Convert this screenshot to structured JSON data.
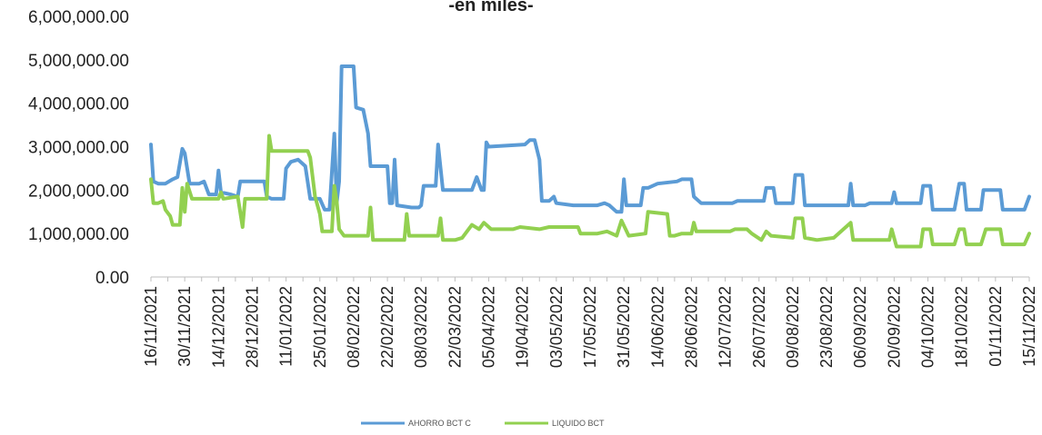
{
  "chart_data": {
    "type": "line",
    "title": "-en miles-",
    "xlabel": "",
    "ylabel": "",
    "ylim": [
      0,
      6000000
    ],
    "yticks": [
      "0.00",
      "1,000,000.00",
      "2,000,000.00",
      "3,000,000.00",
      "4,000,000.00",
      "5,000,000.00",
      "6,000,000.00"
    ],
    "ytick_values": [
      0,
      1000000,
      2000000,
      3000000,
      4000000,
      5000000,
      6000000
    ],
    "x_range": [
      "2021-11-16",
      "2022-11-15"
    ],
    "x_ticks": [
      "16/11/2021",
      "30/11/2021",
      "14/12/2021",
      "28/12/2021",
      "11/01/2022",
      "25/01/2022",
      "08/02/2022",
      "22/02/2022",
      "08/03/2022",
      "22/03/2022",
      "05/04/2022",
      "19/04/2022",
      "03/05/2022",
      "17/05/2022",
      "31/05/2022",
      "14/06/2022",
      "28/06/2022",
      "12/07/2022",
      "26/07/2022",
      "09/08/2022",
      "23/08/2022",
      "06/09/2022",
      "20/09/2022",
      "04/10/2022",
      "18/10/2022",
      "01/11/2022",
      "15/11/2022"
    ],
    "grid": false,
    "legend_position": "bottom",
    "series": [
      {
        "name": "AHORRO BCT C",
        "color": "#5b9bd5",
        "points": [
          [
            "2021-11-16",
            3050000
          ],
          [
            "2021-11-17",
            2200000
          ],
          [
            "2021-11-19",
            2150000
          ],
          [
            "2021-11-22",
            2150000
          ],
          [
            "2021-11-25",
            2250000
          ],
          [
            "2021-11-27",
            2300000
          ],
          [
            "2021-11-29",
            2950000
          ],
          [
            "2021-11-30",
            2850000
          ],
          [
            "2021-12-02",
            2150000
          ],
          [
            "2021-12-06",
            2150000
          ],
          [
            "2021-12-08",
            2200000
          ],
          [
            "2021-12-10",
            1900000
          ],
          [
            "2021-12-13",
            1900000
          ],
          [
            "2021-12-14",
            2450000
          ],
          [
            "2021-12-15",
            1950000
          ],
          [
            "2021-12-19",
            1900000
          ],
          [
            "2021-12-22",
            1850000
          ],
          [
            "2021-12-23",
            2200000
          ],
          [
            "2021-12-26",
            2200000
          ],
          [
            "2021-12-31",
            2200000
          ],
          [
            "2022-01-02",
            2200000
          ],
          [
            "2022-01-03",
            1850000
          ],
          [
            "2022-01-05",
            1800000
          ],
          [
            "2022-01-08",
            1800000
          ],
          [
            "2022-01-10",
            1800000
          ],
          [
            "2022-01-11",
            2500000
          ],
          [
            "2022-01-13",
            2650000
          ],
          [
            "2022-01-16",
            2700000
          ],
          [
            "2022-01-19",
            2550000
          ],
          [
            "2022-01-21",
            1800000
          ],
          [
            "2022-01-25",
            1800000
          ],
          [
            "2022-01-27",
            1550000
          ],
          [
            "2022-01-29",
            1550000
          ],
          [
            "2022-01-31",
            3300000
          ],
          [
            "2022-02-01",
            1700000
          ],
          [
            "2022-02-02",
            2200000
          ],
          [
            "2022-02-03",
            4850000
          ],
          [
            "2022-02-08",
            4850000
          ],
          [
            "2022-02-09",
            3900000
          ],
          [
            "2022-02-12",
            3850000
          ],
          [
            "2022-02-14",
            3300000
          ],
          [
            "2022-02-15",
            2550000
          ],
          [
            "2022-02-20",
            2550000
          ],
          [
            "2022-02-22",
            2550000
          ],
          [
            "2022-02-23",
            1700000
          ],
          [
            "2022-02-24",
            1700000
          ],
          [
            "2022-02-25",
            2700000
          ],
          [
            "2022-02-26",
            1650000
          ],
          [
            "2022-03-04",
            1600000
          ],
          [
            "2022-03-07",
            1600000
          ],
          [
            "2022-03-08",
            1650000
          ],
          [
            "2022-03-09",
            2100000
          ],
          [
            "2022-03-14",
            2100000
          ],
          [
            "2022-03-15",
            3050000
          ],
          [
            "2022-03-17",
            2000000
          ],
          [
            "2022-03-22",
            2000000
          ],
          [
            "2022-03-29",
            2000000
          ],
          [
            "2022-03-31",
            2300000
          ],
          [
            "2022-04-02",
            2000000
          ],
          [
            "2022-04-03",
            2000000
          ],
          [
            "2022-04-04",
            3100000
          ],
          [
            "2022-04-05",
            3000000
          ],
          [
            "2022-04-20",
            3050000
          ],
          [
            "2022-04-22",
            3150000
          ],
          [
            "2022-04-24",
            3150000
          ],
          [
            "2022-04-26",
            2700000
          ],
          [
            "2022-04-27",
            1750000
          ],
          [
            "2022-04-30",
            1750000
          ],
          [
            "2022-05-02",
            1850000
          ],
          [
            "2022-05-03",
            1700000
          ],
          [
            "2022-05-10",
            1650000
          ],
          [
            "2022-05-20",
            1650000
          ],
          [
            "2022-05-23",
            1700000
          ],
          [
            "2022-05-25",
            1650000
          ],
          [
            "2022-05-28",
            1500000
          ],
          [
            "2022-05-30",
            1500000
          ],
          [
            "2022-05-31",
            2250000
          ],
          [
            "2022-06-01",
            1650000
          ],
          [
            "2022-06-07",
            1650000
          ],
          [
            "2022-06-08",
            2050000
          ],
          [
            "2022-06-10",
            2050000
          ],
          [
            "2022-06-14",
            2150000
          ],
          [
            "2022-06-22",
            2200000
          ],
          [
            "2022-06-24",
            2250000
          ],
          [
            "2022-06-28",
            2250000
          ],
          [
            "2022-06-29",
            1850000
          ],
          [
            "2022-07-02",
            1700000
          ],
          [
            "2022-07-15",
            1700000
          ],
          [
            "2022-07-17",
            1750000
          ],
          [
            "2022-07-26",
            1750000
          ],
          [
            "2022-07-28",
            1750000
          ],
          [
            "2022-07-29",
            2050000
          ],
          [
            "2022-08-01",
            2050000
          ],
          [
            "2022-08-02",
            1700000
          ],
          [
            "2022-08-09",
            1700000
          ],
          [
            "2022-08-10",
            2350000
          ],
          [
            "2022-08-13",
            2350000
          ],
          [
            "2022-08-14",
            1650000
          ],
          [
            "2022-09-01",
            1650000
          ],
          [
            "2022-09-02",
            2150000
          ],
          [
            "2022-09-03",
            1650000
          ],
          [
            "2022-09-08",
            1650000
          ],
          [
            "2022-09-10",
            1700000
          ],
          [
            "2022-09-19",
            1700000
          ],
          [
            "2022-09-20",
            1950000
          ],
          [
            "2022-09-21",
            1700000
          ],
          [
            "2022-10-01",
            1700000
          ],
          [
            "2022-10-02",
            2100000
          ],
          [
            "2022-10-05",
            2100000
          ],
          [
            "2022-10-06",
            1550000
          ],
          [
            "2022-10-15",
            1550000
          ],
          [
            "2022-10-17",
            2150000
          ],
          [
            "2022-10-19",
            2150000
          ],
          [
            "2022-10-20",
            1550000
          ],
          [
            "2022-10-26",
            1550000
          ],
          [
            "2022-10-27",
            2000000
          ],
          [
            "2022-11-03",
            2000000
          ],
          [
            "2022-11-04",
            1550000
          ],
          [
            "2022-11-13",
            1550000
          ],
          [
            "2022-11-15",
            1850000
          ]
        ]
      },
      {
        "name": "LIQUIDO BCT",
        "color": "#92d050",
        "points": [
          [
            "2021-11-16",
            2250000
          ],
          [
            "2021-11-17",
            1700000
          ],
          [
            "2021-11-19",
            1700000
          ],
          [
            "2021-11-21",
            1750000
          ],
          [
            "2021-11-22",
            1550000
          ],
          [
            "2021-11-24",
            1400000
          ],
          [
            "2021-11-25",
            1200000
          ],
          [
            "2021-11-28",
            1200000
          ],
          [
            "2021-11-29",
            2050000
          ],
          [
            "2021-11-30",
            1500000
          ],
          [
            "2021-12-01",
            2150000
          ],
          [
            "2021-12-03",
            1800000
          ],
          [
            "2021-12-14",
            1800000
          ],
          [
            "2021-12-15",
            1950000
          ],
          [
            "2021-12-16",
            1800000
          ],
          [
            "2021-12-22",
            1850000
          ],
          [
            "2021-12-24",
            1150000
          ],
          [
            "2021-12-25",
            1800000
          ],
          [
            "2022-01-03",
            1800000
          ],
          [
            "2022-01-04",
            3250000
          ],
          [
            "2022-01-05",
            2900000
          ],
          [
            "2022-01-20",
            2900000
          ],
          [
            "2022-01-21",
            2750000
          ],
          [
            "2022-01-23",
            1850000
          ],
          [
            "2022-01-25",
            1450000
          ],
          [
            "2022-01-26",
            1050000
          ],
          [
            "2022-01-30",
            1050000
          ],
          [
            "2022-01-31",
            2100000
          ],
          [
            "2022-02-01",
            1750000
          ],
          [
            "2022-02-02",
            1100000
          ],
          [
            "2022-02-04",
            950000
          ],
          [
            "2022-02-14",
            950000
          ],
          [
            "2022-02-15",
            1600000
          ],
          [
            "2022-02-16",
            850000
          ],
          [
            "2022-03-01",
            850000
          ],
          [
            "2022-03-02",
            1450000
          ],
          [
            "2022-03-03",
            950000
          ],
          [
            "2022-03-15",
            950000
          ],
          [
            "2022-03-16",
            1350000
          ],
          [
            "2022-03-17",
            850000
          ],
          [
            "2022-03-22",
            850000
          ],
          [
            "2022-03-25",
            900000
          ],
          [
            "2022-03-29",
            1200000
          ],
          [
            "2022-04-01",
            1100000
          ],
          [
            "2022-04-03",
            1250000
          ],
          [
            "2022-04-06",
            1100000
          ],
          [
            "2022-04-15",
            1100000
          ],
          [
            "2022-04-18",
            1150000
          ],
          [
            "2022-04-26",
            1100000
          ],
          [
            "2022-04-30",
            1150000
          ],
          [
            "2022-05-12",
            1150000
          ],
          [
            "2022-05-13",
            1000000
          ],
          [
            "2022-05-20",
            1000000
          ],
          [
            "2022-05-24",
            1050000
          ],
          [
            "2022-05-28",
            950000
          ],
          [
            "2022-05-30",
            1300000
          ],
          [
            "2022-06-02",
            950000
          ],
          [
            "2022-06-09",
            1000000
          ],
          [
            "2022-06-10",
            1500000
          ],
          [
            "2022-06-18",
            1450000
          ],
          [
            "2022-06-19",
            950000
          ],
          [
            "2022-06-21",
            950000
          ],
          [
            "2022-06-24",
            1000000
          ],
          [
            "2022-06-28",
            1000000
          ],
          [
            "2022-06-29",
            1250000
          ],
          [
            "2022-06-30",
            1050000
          ],
          [
            "2022-07-14",
            1050000
          ],
          [
            "2022-07-16",
            1100000
          ],
          [
            "2022-07-21",
            1100000
          ],
          [
            "2022-07-23",
            1000000
          ],
          [
            "2022-07-27",
            850000
          ],
          [
            "2022-07-29",
            1050000
          ],
          [
            "2022-07-31",
            950000
          ],
          [
            "2022-08-09",
            900000
          ],
          [
            "2022-08-10",
            1350000
          ],
          [
            "2022-08-13",
            1350000
          ],
          [
            "2022-08-14",
            900000
          ],
          [
            "2022-08-19",
            850000
          ],
          [
            "2022-08-26",
            900000
          ],
          [
            "2022-09-02",
            1250000
          ],
          [
            "2022-09-03",
            850000
          ],
          [
            "2022-09-14",
            850000
          ],
          [
            "2022-09-18",
            850000
          ],
          [
            "2022-09-19",
            1100000
          ],
          [
            "2022-09-21",
            700000
          ],
          [
            "2022-10-01",
            700000
          ],
          [
            "2022-10-02",
            1100000
          ],
          [
            "2022-10-05",
            1100000
          ],
          [
            "2022-10-06",
            750000
          ],
          [
            "2022-10-15",
            750000
          ],
          [
            "2022-10-17",
            1100000
          ],
          [
            "2022-10-19",
            1100000
          ],
          [
            "2022-10-20",
            750000
          ],
          [
            "2022-10-26",
            750000
          ],
          [
            "2022-10-28",
            1100000
          ],
          [
            "2022-11-03",
            1100000
          ],
          [
            "2022-11-04",
            750000
          ],
          [
            "2022-11-13",
            750000
          ],
          [
            "2022-11-15",
            1000000
          ]
        ]
      }
    ]
  }
}
